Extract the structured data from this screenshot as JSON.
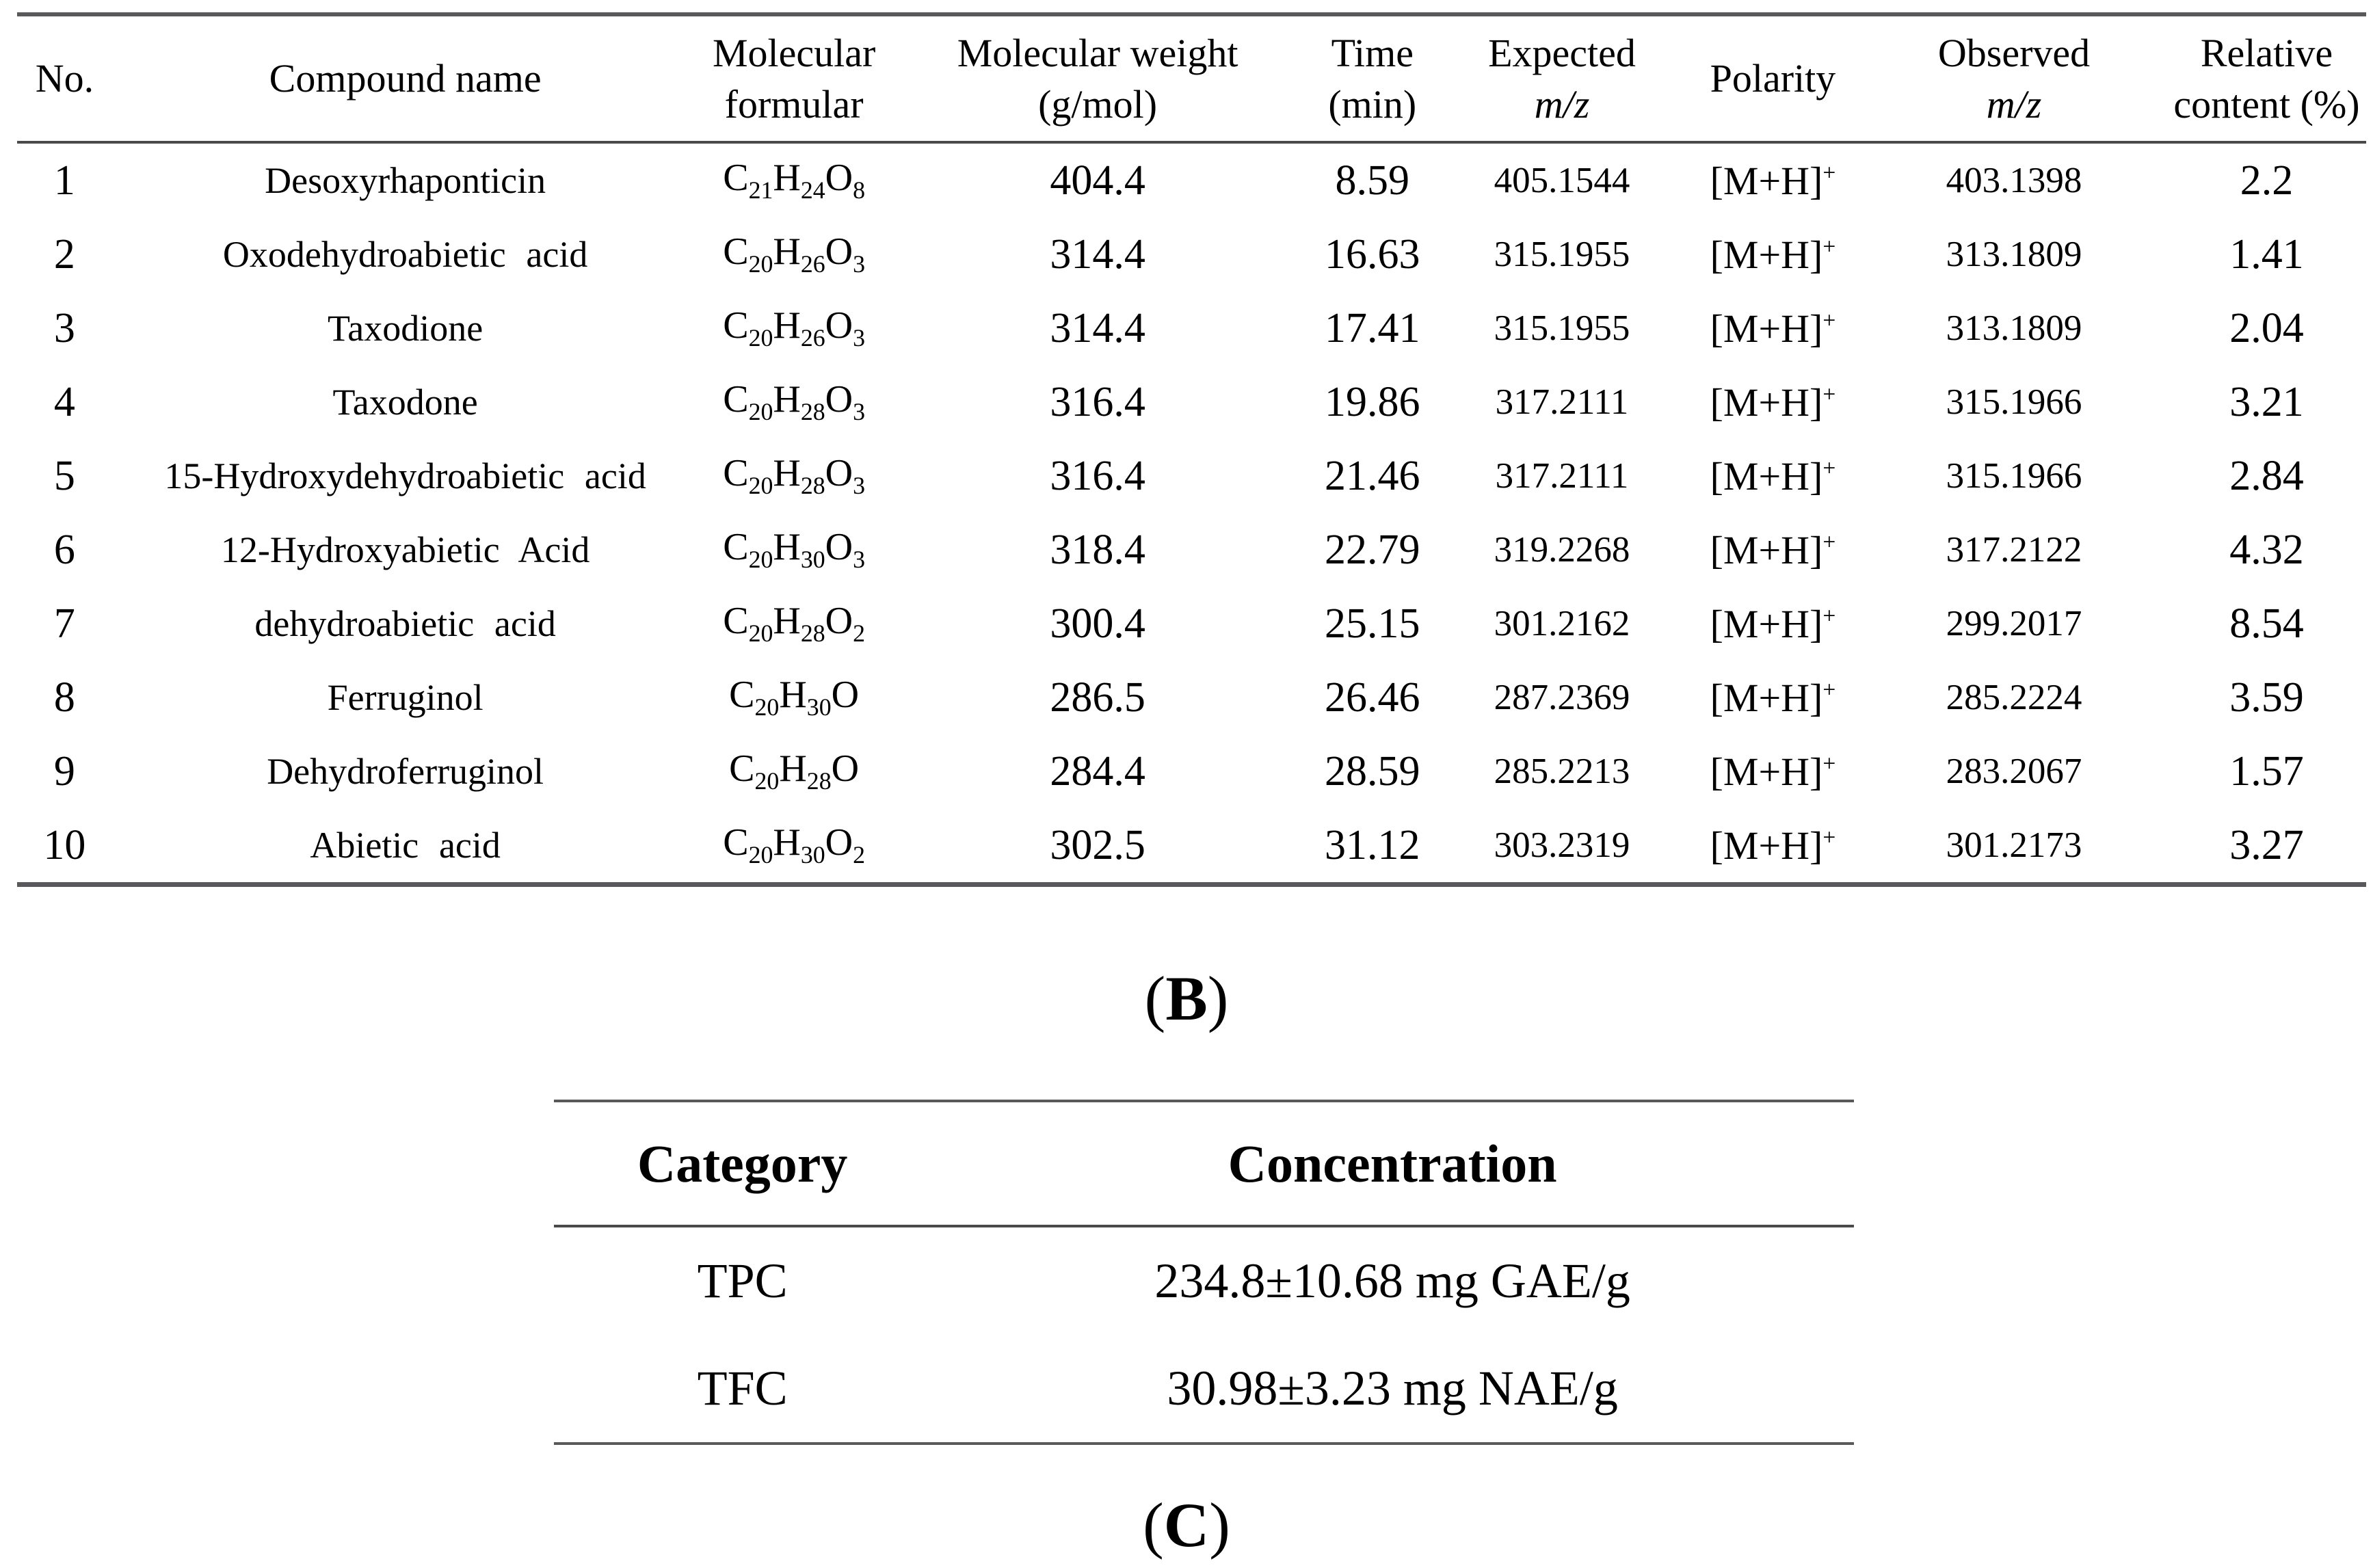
{
  "table_b": {
    "headers": {
      "no": "No.",
      "compound": "Compound name",
      "formula_line1": "Molecular",
      "formula_line2": "formular",
      "weight_line1": "Molecular weight",
      "weight_line2": "(g/mol)",
      "time_line1": "Time",
      "time_line2": "(min)",
      "expected_line1": "Expected",
      "expected_line2": "m/z",
      "polarity": "Polarity",
      "observed_line1": "Observed",
      "observed_line2": "m/z",
      "relative_line1": "Relative",
      "relative_line2": "content (%)"
    },
    "rows": [
      {
        "no": "1",
        "name": "Desoxyrhaponticin",
        "formula": "C21H24O8",
        "weight": "404.4",
        "time": "8.59",
        "expected": "405.1544",
        "polarity": "[M+H]+",
        "observed": "403.1398",
        "relative": "2.2"
      },
      {
        "no": "2",
        "name": "Oxodehydroabietic acid",
        "formula": "C20H26O3",
        "weight": "314.4",
        "time": "16.63",
        "expected": "315.1955",
        "polarity": "[M+H]+",
        "observed": "313.1809",
        "relative": "1.41"
      },
      {
        "no": "3",
        "name": "Taxodione",
        "formula": "C20H26O3",
        "weight": "314.4",
        "time": "17.41",
        "expected": "315.1955",
        "polarity": "[M+H]+",
        "observed": "313.1809",
        "relative": "2.04"
      },
      {
        "no": "4",
        "name": "Taxodone",
        "formula": "C20H28O3",
        "weight": "316.4",
        "time": "19.86",
        "expected": "317.2111",
        "polarity": "[M+H]+",
        "observed": "315.1966",
        "relative": "3.21"
      },
      {
        "no": "5",
        "name": "15-Hydroxydehydroabietic acid",
        "formula": "C20H28O3",
        "weight": "316.4",
        "time": "21.46",
        "expected": "317.2111",
        "polarity": "[M+H]+",
        "observed": "315.1966",
        "relative": "2.84"
      },
      {
        "no": "6",
        "name": "12-Hydroxyabietic Acid",
        "formula": "C20H30O3",
        "weight": "318.4",
        "time": "22.79",
        "expected": "319.2268",
        "polarity": "[M+H]+",
        "observed": "317.2122",
        "relative": "4.32"
      },
      {
        "no": "7",
        "name": "dehydroabietic acid",
        "formula": "C20H28O2",
        "weight": "300.4",
        "time": "25.15",
        "expected": "301.2162",
        "polarity": "[M+H]+",
        "observed": "299.2017",
        "relative": "8.54"
      },
      {
        "no": "8",
        "name": "Ferruginol",
        "formula": "C20H30O",
        "weight": "286.5",
        "time": "26.46",
        "expected": "287.2369",
        "polarity": "[M+H]+",
        "observed": "285.2224",
        "relative": "3.59"
      },
      {
        "no": "9",
        "name": "Dehydroferruginol",
        "formula": "C20H28O",
        "weight": "284.4",
        "time": "28.59",
        "expected": "285.2213",
        "polarity": "[M+H]+",
        "observed": "283.2067",
        "relative": "1.57"
      },
      {
        "no": "10",
        "name": "Abietic acid",
        "formula": "C20H30O2",
        "weight": "302.5",
        "time": "31.12",
        "expected": "303.2319",
        "polarity": "[M+H]+",
        "observed": "301.2173",
        "relative": "3.27"
      }
    ]
  },
  "caption_b": {
    "open": "(",
    "letter": "B",
    "close": ")"
  },
  "caption_c": {
    "open": "(",
    "letter": "C",
    "close": ")"
  },
  "table_c": {
    "headers": {
      "category": "Category",
      "concentration": "Concentration"
    },
    "rows": [
      {
        "category": "TPC",
        "concentration": "234.8±10.68 mg GAE/g"
      },
      {
        "category": "TFC",
        "concentration": "30.98±3.23 mg NAE/g"
      }
    ]
  }
}
